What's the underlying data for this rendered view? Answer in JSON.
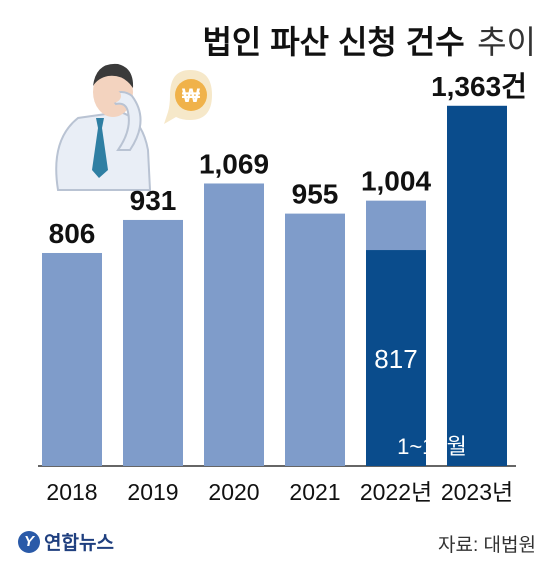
{
  "title": {
    "bold": "법인 파산 신청 건수",
    "light": "추이"
  },
  "illustration": {
    "icon": "stressed-businessman-icon",
    "bubble_symbol": "₩"
  },
  "colors": {
    "bar_light": "#7f9cca",
    "bar_dark": "#0a4c8c",
    "axis": "#333333"
  },
  "chart_data": {
    "type": "bar",
    "title": "법인 파산 신청 건수 추이",
    "categories": [
      "2018",
      "2019",
      "2020",
      "2021",
      "2022년",
      "2023년"
    ],
    "values": [
      806,
      931,
      1069,
      955,
      1004,
      1363
    ],
    "value_labels": [
      "806",
      "931",
      "1,069",
      "955",
      "1,004",
      "1,363건"
    ],
    "partial": {
      "category": "2022년",
      "value": 817,
      "value_label": "817",
      "note": "1~10월"
    },
    "ylim": [
      0,
      1400
    ],
    "grid": false,
    "legend": "none"
  },
  "footer": {
    "logo_text": "연합뉴스",
    "logo_mark": "Y",
    "source": "자료: 대법원"
  }
}
